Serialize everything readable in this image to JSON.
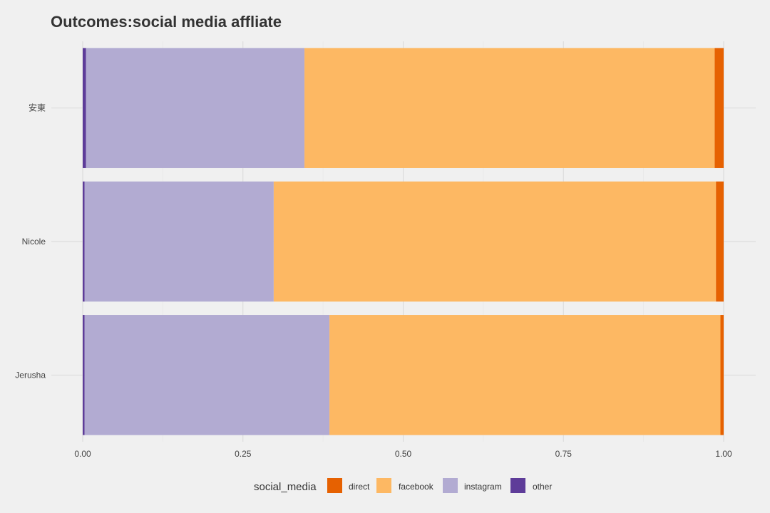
{
  "chart_data": {
    "type": "bar",
    "orientation": "horizontal",
    "stacked": true,
    "title": "Outcomes:social media affliate",
    "xlabel": "",
    "ylabel": "",
    "xlim": [
      0,
      1
    ],
    "x_ticks": [
      "0.00",
      "0.25",
      "0.50",
      "0.75",
      "1.00"
    ],
    "x_tick_values": [
      0,
      0.25,
      0.5,
      0.75,
      1.0
    ],
    "categories": [
      "安東",
      "Nicole",
      "Jerusha"
    ],
    "stack_order": [
      "other",
      "instagram",
      "facebook",
      "direct"
    ],
    "series": [
      {
        "name": "direct",
        "color": "#e66101",
        "values": [
          0.014,
          0.012,
          0.005
        ]
      },
      {
        "name": "facebook",
        "color": "#fdb863",
        "values": [
          0.64,
          0.69,
          0.61
        ]
      },
      {
        "name": "instagram",
        "color": "#b2abd2",
        "values": [
          0.341,
          0.295,
          0.382
        ]
      },
      {
        "name": "other",
        "color": "#5e3c99",
        "values": [
          0.005,
          0.003,
          0.003
        ]
      }
    ],
    "legend": {
      "title": "social_media",
      "position": "bottom",
      "entries": [
        "direct",
        "facebook",
        "instagram",
        "other"
      ]
    },
    "grid": true
  }
}
